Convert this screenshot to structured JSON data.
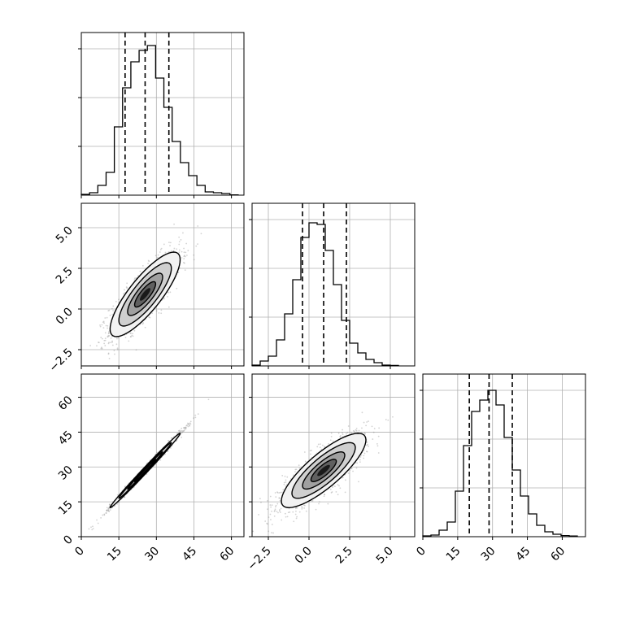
{
  "chart_data": {
    "type": "corner",
    "parameters": [
      "",
      "",
      ""
    ],
    "quantiles": [
      0.16,
      0.5,
      0.84
    ],
    "colors": {
      "hist_line": "#000000",
      "quantile_line": "#000000",
      "grid": "#b0b0b0",
      "scatter": "#808080",
      "contour_dark": "#000000"
    },
    "grid": true,
    "diagonals": [
      {
        "param_index": 0,
        "xlim": [
          0,
          65
        ],
        "ylim": [
          0,
          1.0
        ],
        "bin_edges": [
          0,
          3.3,
          6.6,
          9.9,
          13.2,
          16.5,
          19.8,
          23.1,
          26.4,
          29.7,
          33,
          36.3,
          39.6,
          42.9,
          46.2,
          49.5,
          52.8,
          56.1,
          59.4,
          62.7
        ],
        "counts": [
          0.005,
          0.015,
          0.06,
          0.14,
          0.42,
          0.66,
          0.82,
          0.89,
          0.92,
          0.72,
          0.54,
          0.33,
          0.2,
          0.12,
          0.06,
          0.02,
          0.015,
          0.01,
          0.002
        ],
        "quantile_values": [
          17.5,
          25.5,
          35.0
        ],
        "ticks": [
          0,
          15,
          30,
          45,
          60
        ],
        "tick_labels": [
          "0",
          "15",
          "30",
          "45",
          "60"
        ]
      },
      {
        "param_index": 1,
        "xlim": [
          -3.5,
          6.5
        ],
        "ylim": [
          0,
          1.0
        ],
        "bin_edges": [
          -3.5,
          -3.0,
          -2.5,
          -2.0,
          -1.5,
          -1.0,
          -0.5,
          0,
          0.5,
          1.0,
          1.5,
          2.0,
          2.5,
          3.0,
          3.5,
          4.0,
          4.5,
          5.0,
          5.5
        ],
        "counts": [
          0.005,
          0.03,
          0.06,
          0.16,
          0.32,
          0.53,
          0.79,
          0.88,
          0.87,
          0.71,
          0.5,
          0.28,
          0.14,
          0.08,
          0.04,
          0.02,
          0.005,
          0.003
        ],
        "quantile_values": [
          -0.4,
          0.9,
          2.3
        ],
        "ticks": [
          -2.5,
          0.0,
          2.5,
          5.0
        ],
        "tick_labels": [
          "−2.5",
          "0.0",
          "2.5",
          "5.0"
        ]
      },
      {
        "param_index": 2,
        "xlim": [
          0,
          70
        ],
        "ylim": [
          0,
          1.0
        ],
        "bin_edges": [
          0,
          3.5,
          7,
          10.5,
          14,
          17.5,
          21,
          24.5,
          28,
          31.5,
          35,
          38.5,
          42,
          45.5,
          49,
          52.5,
          56,
          59.5,
          63,
          66.5
        ],
        "counts": [
          0.005,
          0.01,
          0.04,
          0.09,
          0.28,
          0.56,
          0.77,
          0.84,
          0.9,
          0.81,
          0.61,
          0.41,
          0.25,
          0.14,
          0.07,
          0.03,
          0.015,
          0.007,
          0.004
        ],
        "quantile_values": [
          20.0,
          28.5,
          38.5
        ],
        "ticks": [
          0,
          15,
          30,
          45,
          60
        ],
        "tick_labels": [
          "0",
          "15",
          "30",
          "45",
          "60"
        ]
      }
    ],
    "pairs": [
      {
        "x_param": 0,
        "y_param": 1,
        "xlim": [
          0,
          65
        ],
        "ylim": [
          -3.5,
          6.5
        ],
        "mean": [
          25.5,
          0.9
        ],
        "sd": [
          7.0,
          1.3
        ],
        "rho": 0.82,
        "y_ticks": [
          -2.5,
          0.0,
          2.5,
          5.0
        ],
        "y_tick_labels": [
          "−2.5",
          "0.0",
          "2.5",
          "5.0"
        ]
      },
      {
        "x_param": 0,
        "y_param": 2,
        "xlim": [
          0,
          65
        ],
        "ylim": [
          0,
          70
        ],
        "mean": [
          25.5,
          28.5
        ],
        "sd": [
          7.0,
          8.0
        ],
        "rho": 0.995,
        "y_ticks": [
          0,
          15,
          30,
          45,
          60
        ],
        "y_tick_labels": [
          "0",
          "15",
          "30",
          "45",
          "60"
        ]
      },
      {
        "x_param": 1,
        "y_param": 2,
        "xlim": [
          -3.5,
          6.5
        ],
        "ylim": [
          0,
          70
        ],
        "mean": [
          0.9,
          28.5
        ],
        "sd": [
          1.3,
          8.0
        ],
        "rho": 0.82
      }
    ]
  }
}
